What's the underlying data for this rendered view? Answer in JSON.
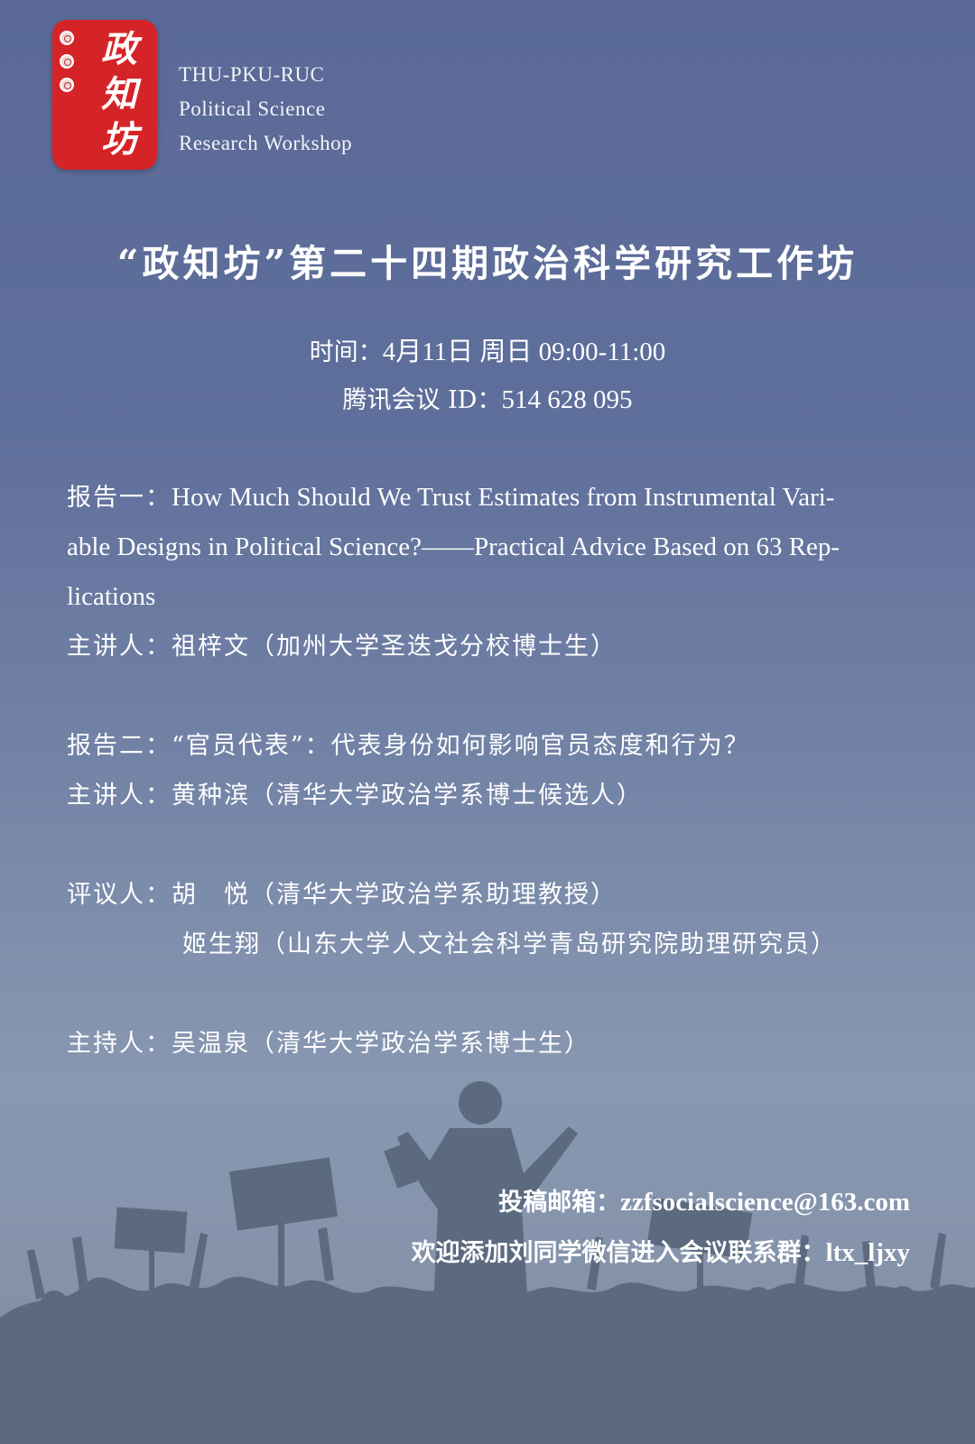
{
  "logo": {
    "chars": [
      "政",
      "知",
      "坊"
    ],
    "lines": [
      "THU-PKU-RUC",
      "Political  Science",
      "Research  Workshop"
    ]
  },
  "title": "“政知坊”第二十四期政治科学研究工作坊",
  "schedule": {
    "time_label": "时间：",
    "time_value": "4月11日  周日 09:00-11:00",
    "meeting_label": "腾讯会议 ID：",
    "meeting_value": "514 628 095"
  },
  "talk1": {
    "label": "报告一：",
    "title_lines": [
      "How Much Should We Trust Estimates from Instrumental Vari-",
      "able Designs in Political Science?——Practical Advice Based on 63 Rep-",
      "lications"
    ],
    "speaker_label": "主讲人：",
    "speaker": "祖梓文（加州大学圣迭戈分校博士生）"
  },
  "talk2": {
    "label": "报告二：",
    "title": "“官员代表”：代表身份如何影响官员态度和行为？",
    "speaker_label": "主讲人：",
    "speaker": "黄种滨（清华大学政治学系博士候选人）"
  },
  "discussants": {
    "label": "评议人：",
    "items": [
      "胡　悦（清华大学政治学系助理教授）",
      "姬生翔（山东大学人文社会科学青岛研究院助理研究员）"
    ]
  },
  "host": {
    "label": "主持人：",
    "name": "吴温泉（清华大学政治学系博士生）"
  },
  "contact": {
    "email_label": "投稿邮箱：",
    "email": "zzfsocialscience@163.com",
    "wechat_label": "欢迎添加刘同学微信进入会议联系群：",
    "wechat": "ltx_ljxy"
  },
  "colors": {
    "logo_red": "#d52428",
    "background_top": "#5a6997",
    "silhouette": "#5b6a7f"
  }
}
